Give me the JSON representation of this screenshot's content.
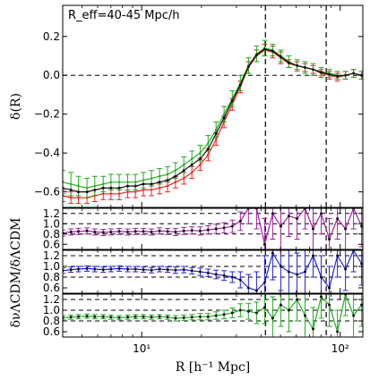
{
  "chart_data": [
    {
      "type": "line",
      "annotation": "R_eff=40-45 Mpc/h",
      "ylabel": "δ(R)",
      "xscale": "log",
      "xlim": [
        4,
        130
      ],
      "ylim": [
        -0.68,
        0.36
      ],
      "yticks": [
        0.2,
        0.0,
        -0.2,
        -0.4,
        -0.6
      ],
      "ytick_labels": [
        "0.2",
        "0.0",
        "−0.2",
        "−0.4",
        "−0.6"
      ],
      "hline": 0.0,
      "vlines": [
        42,
        85
      ],
      "series": [
        {
          "color": "#ee2222",
          "x": [
            4.0,
            4.4,
            4.8,
            5.3,
            5.8,
            6.4,
            7.0,
            7.7,
            8.5,
            9.3,
            10.2,
            11.2,
            12.3,
            13.5,
            14.8,
            16.3,
            17.9,
            19.7,
            21.6,
            23.7,
            26.0,
            28.6,
            31.4,
            34.5,
            37.9,
            41.6,
            45.7,
            50.2,
            55.1,
            60.6,
            66.5,
            73.0,
            80.2,
            88.1,
            96.8,
            106.3,
            116.7,
            128.2
          ],
          "y": [
            -0.62,
            -0.63,
            -0.63,
            -0.63,
            -0.62,
            -0.61,
            -0.61,
            -0.61,
            -0.6,
            -0.6,
            -0.59,
            -0.59,
            -0.58,
            -0.57,
            -0.55,
            -0.53,
            -0.5,
            -0.46,
            -0.41,
            -0.33,
            -0.24,
            -0.15,
            -0.06,
            0.04,
            0.1,
            0.13,
            0.12,
            0.09,
            0.06,
            0.05,
            0.04,
            0.03,
            0.01,
            0.0,
            -0.01,
            0.0,
            0.01,
            0.0
          ],
          "err": [
            0.03,
            0.03,
            0.03,
            0.03,
            0.03,
            0.03,
            0.03,
            0.03,
            0.03,
            0.03,
            0.03,
            0.03,
            0.03,
            0.03,
            0.03,
            0.03,
            0.03,
            0.03,
            0.03,
            0.03,
            0.03,
            0.03,
            0.03,
            0.03,
            0.03,
            0.03,
            0.03,
            0.03,
            0.02,
            0.02,
            0.02,
            0.02,
            0.02,
            0.02,
            0.02,
            0.02,
            0.02,
            0.02
          ]
        },
        {
          "color": "#22aa22",
          "x": [
            4.0,
            4.4,
            4.8,
            5.3,
            5.8,
            6.4,
            7.0,
            7.7,
            8.5,
            9.3,
            10.2,
            11.2,
            12.3,
            13.5,
            14.8,
            16.3,
            17.9,
            19.7,
            21.6,
            23.7,
            26.0,
            28.6,
            31.4,
            34.5,
            37.9,
            41.6,
            45.7,
            50.2,
            55.1,
            60.6,
            66.5,
            73.0,
            80.2,
            88.1,
            96.8,
            106.3,
            116.7,
            128.2
          ],
          "y": [
            -0.55,
            -0.56,
            -0.57,
            -0.58,
            -0.57,
            -0.56,
            -0.55,
            -0.55,
            -0.55,
            -0.55,
            -0.54,
            -0.53,
            -0.52,
            -0.51,
            -0.49,
            -0.46,
            -0.43,
            -0.4,
            -0.35,
            -0.28,
            -0.2,
            -0.12,
            -0.04,
            0.05,
            0.11,
            0.14,
            0.13,
            0.1,
            0.07,
            0.05,
            0.04,
            0.03,
            0.02,
            0.01,
            0.0,
            0.0,
            0.01,
            0.0
          ],
          "err": [
            0.06,
            0.06,
            0.05,
            0.05,
            0.05,
            0.04,
            0.04,
            0.04,
            0.04,
            0.04,
            0.04,
            0.04,
            0.04,
            0.04,
            0.04,
            0.04,
            0.04,
            0.04,
            0.04,
            0.04,
            0.04,
            0.04,
            0.04,
            0.04,
            0.04,
            0.04,
            0.03,
            0.03,
            0.03,
            0.03,
            0.03,
            0.03,
            0.02,
            0.02,
            0.02,
            0.02,
            0.02,
            0.02
          ]
        },
        {
          "color": "#111111",
          "x": [
            4.0,
            4.4,
            4.8,
            5.3,
            5.8,
            6.4,
            7.0,
            7.7,
            8.5,
            9.3,
            10.2,
            11.2,
            12.3,
            13.5,
            14.8,
            16.3,
            17.9,
            19.7,
            21.6,
            23.7,
            26.0,
            28.6,
            31.4,
            34.5,
            37.9,
            41.6,
            45.7,
            50.2,
            55.1,
            60.6,
            66.5,
            73.0,
            80.2,
            88.1,
            96.8,
            106.3,
            116.7,
            128.2
          ],
          "y": [
            -0.58,
            -0.59,
            -0.6,
            -0.6,
            -0.59,
            -0.58,
            -0.58,
            -0.58,
            -0.57,
            -0.57,
            -0.56,
            -0.56,
            -0.55,
            -0.54,
            -0.52,
            -0.49,
            -0.46,
            -0.43,
            -0.38,
            -0.3,
            -0.22,
            -0.13,
            -0.05,
            0.045,
            0.105,
            0.135,
            0.125,
            0.095,
            0.065,
            0.05,
            0.04,
            0.03,
            0.015,
            0.005,
            -0.005,
            0.0,
            0.01,
            0.0
          ],
          "err": null
        }
      ]
    },
    {
      "type": "line",
      "ylim": [
        0.5,
        1.3
      ],
      "yticks": [
        0.6,
        0.8,
        1.0,
        1.2
      ],
      "ytick_labels": [
        "0.6",
        "0.8",
        "1.0",
        "1.2"
      ],
      "hlines": [
        0.8,
        1.0,
        1.2
      ],
      "vlines": [
        42,
        85
      ],
      "series": [
        {
          "color": "#a020a0",
          "x": [
            4.0,
            4.4,
            4.8,
            5.3,
            5.8,
            6.4,
            7.0,
            7.7,
            8.5,
            9.3,
            10.2,
            11.2,
            12.3,
            13.5,
            14.8,
            16.3,
            17.9,
            19.7,
            21.6,
            23.7,
            26.0,
            28.6,
            31.4,
            34.5,
            37.9,
            41.6,
            45.7,
            50.2,
            55.1,
            60.6,
            66.5,
            73.0,
            80.2,
            88.1,
            96.8,
            106.3,
            116.7,
            128.2
          ],
          "y": [
            0.82,
            0.84,
            0.85,
            0.86,
            0.84,
            0.83,
            0.84,
            0.85,
            0.84,
            0.85,
            0.85,
            0.84,
            0.86,
            0.85,
            0.84,
            0.86,
            0.87,
            0.86,
            0.88,
            0.9,
            0.92,
            0.95,
            1.05,
            1.3,
            1.3,
            0.6,
            1.2,
            0.95,
            1.15,
            1.1,
            1.3,
            0.9,
            1.2,
            0.7,
            1.1,
            0.9,
            1.3,
            0.95
          ],
          "err": [
            0.06,
            0.06,
            0.06,
            0.06,
            0.06,
            0.06,
            0.06,
            0.06,
            0.06,
            0.06,
            0.06,
            0.06,
            0.06,
            0.06,
            0.07,
            0.07,
            0.07,
            0.08,
            0.08,
            0.09,
            0.1,
            0.12,
            0.18,
            0.3,
            0.4,
            0.5,
            0.5,
            0.5,
            0.4,
            0.4,
            0.4,
            0.4,
            0.4,
            0.4,
            0.4,
            0.4,
            0.4,
            0.4
          ]
        }
      ]
    },
    {
      "type": "line",
      "ylabel": "δνΛCDM/δΛCDM",
      "ylim": [
        0.5,
        1.3
      ],
      "yticks": [
        0.6,
        0.8,
        1.0,
        1.2
      ],
      "ytick_labels": [
        "0.6",
        "0.8",
        "1.0",
        "1.2"
      ],
      "hlines": [
        0.8,
        1.0,
        1.2
      ],
      "vlines": [
        42,
        85
      ],
      "series": [
        {
          "color": "#2222dd",
          "x": [
            4.0,
            4.4,
            4.8,
            5.3,
            5.8,
            6.4,
            7.0,
            7.7,
            8.5,
            9.3,
            10.2,
            11.2,
            12.3,
            13.5,
            14.8,
            16.3,
            17.9,
            19.7,
            21.6,
            23.7,
            26.0,
            28.6,
            31.4,
            34.5,
            37.9,
            41.6,
            45.7,
            50.2,
            55.1,
            60.6,
            66.5,
            73.0,
            80.2,
            88.1,
            96.8,
            106.3,
            116.7,
            128.2
          ],
          "y": [
            0.92,
            0.94,
            0.95,
            0.96,
            0.95,
            0.94,
            0.95,
            0.96,
            0.95,
            0.95,
            0.94,
            0.93,
            0.95,
            0.94,
            0.93,
            0.94,
            0.92,
            0.9,
            0.88,
            0.85,
            0.83,
            0.8,
            0.75,
            0.6,
            0.55,
            0.7,
            1.25,
            1.0,
            0.9,
            0.85,
            0.9,
            1.2,
            0.8,
            0.6,
            1.2,
            0.95,
            1.3,
            1.05
          ],
          "err": [
            0.05,
            0.05,
            0.05,
            0.05,
            0.05,
            0.05,
            0.05,
            0.05,
            0.05,
            0.05,
            0.05,
            0.05,
            0.05,
            0.05,
            0.06,
            0.06,
            0.06,
            0.07,
            0.07,
            0.08,
            0.09,
            0.1,
            0.15,
            0.25,
            0.35,
            0.5,
            0.5,
            0.45,
            0.4,
            0.4,
            0.4,
            0.4,
            0.4,
            0.4,
            0.4,
            0.4,
            0.4,
            0.4
          ]
        }
      ]
    },
    {
      "type": "line",
      "xlabel": "R [h⁻¹ Mpc]",
      "xscale": "log",
      "xlim": [
        4,
        130
      ],
      "xticks": [
        10,
        100
      ],
      "xtick_labels": [
        "10¹",
        "10²"
      ],
      "ylim": [
        0.5,
        1.3
      ],
      "yticks": [
        0.6,
        0.8,
        1.0,
        1.2
      ],
      "ytick_labels": [
        "0.6",
        "0.8",
        "1.0",
        "1.2"
      ],
      "hlines": [
        0.8,
        1.0,
        1.2
      ],
      "vlines": [
        42,
        85
      ],
      "series": [
        {
          "color": "#22aa22",
          "x": [
            4.0,
            4.4,
            4.8,
            5.3,
            5.8,
            6.4,
            7.0,
            7.7,
            8.5,
            9.3,
            10.2,
            11.2,
            12.3,
            13.5,
            14.8,
            16.3,
            17.9,
            19.7,
            21.6,
            23.7,
            26.0,
            28.6,
            31.4,
            34.5,
            37.9,
            41.6,
            45.7,
            50.2,
            55.1,
            60.6,
            66.5,
            73.0,
            80.2,
            88.1,
            96.8,
            106.3,
            116.7,
            128.2
          ],
          "y": [
            0.86,
            0.87,
            0.88,
            0.89,
            0.88,
            0.88,
            0.87,
            0.86,
            0.87,
            0.88,
            0.88,
            0.87,
            0.88,
            0.87,
            0.85,
            0.86,
            0.87,
            0.88,
            0.88,
            0.9,
            0.92,
            0.95,
            1.0,
            0.98,
            0.95,
            1.05,
            0.85,
            1.1,
            1.0,
            1.2,
            0.9,
            0.65,
            1.25,
            1.1,
            0.6,
            1.3,
            0.9,
            1.1
          ],
          "err": [
            0.04,
            0.04,
            0.04,
            0.04,
            0.04,
            0.04,
            0.04,
            0.04,
            0.04,
            0.04,
            0.04,
            0.04,
            0.04,
            0.04,
            0.05,
            0.05,
            0.05,
            0.06,
            0.06,
            0.07,
            0.08,
            0.09,
            0.12,
            0.15,
            0.2,
            0.3,
            0.4,
            0.4,
            0.4,
            0.4,
            0.4,
            0.4,
            0.4,
            0.4,
            0.4,
            0.4,
            0.4,
            0.4
          ]
        }
      ]
    }
  ]
}
